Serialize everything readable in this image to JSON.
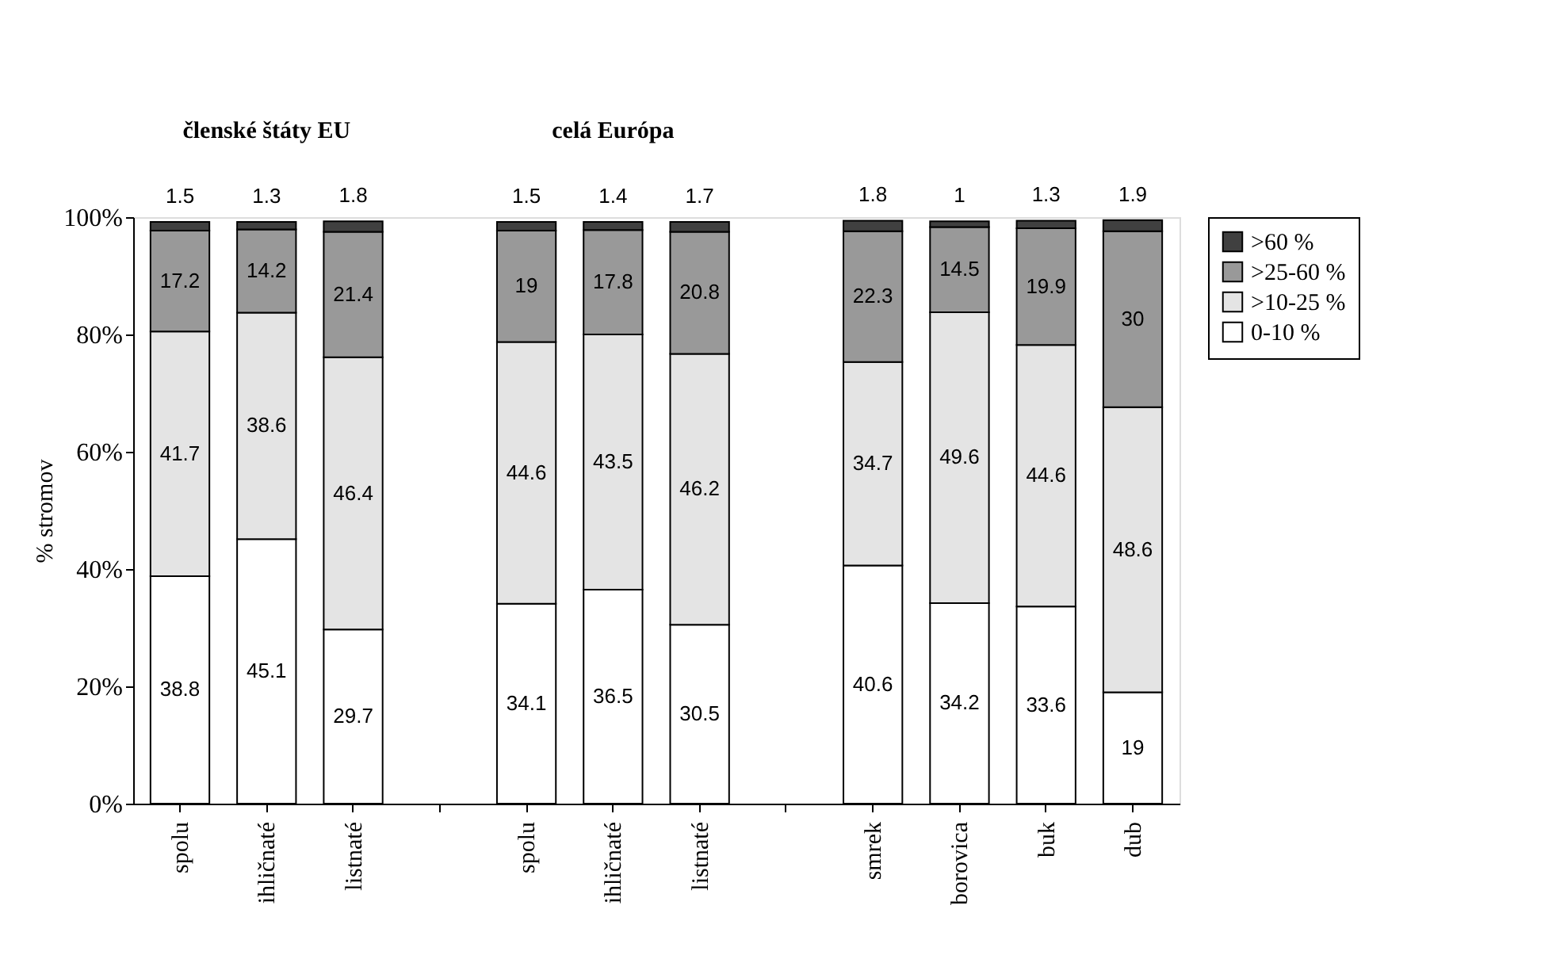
{
  "chart_data": {
    "type": "bar",
    "stacked": true,
    "ylabel": "% stromov",
    "categories": [
      "spolu",
      "ihličnaté",
      "listnaté",
      null,
      "spolu",
      "ihličnaté",
      "listnaté",
      null,
      "smrek",
      "borovica",
      "buk",
      "dub"
    ],
    "series": [
      {
        "name": "0-10 %",
        "color": "#ffffff",
        "values": [
          38.8,
          45.1,
          29.7,
          null,
          34.1,
          36.5,
          30.5,
          null,
          40.6,
          34.2,
          33.6,
          19
        ]
      },
      {
        "name": ">10-25 %",
        "color": "#e4e4e4",
        "values": [
          41.7,
          38.6,
          46.4,
          null,
          44.6,
          43.5,
          46.2,
          null,
          34.7,
          49.6,
          44.6,
          48.6
        ]
      },
      {
        "name": ">25-60 %",
        "color": "#999999",
        "values": [
          17.2,
          14.2,
          21.4,
          null,
          19,
          17.8,
          20.8,
          null,
          22.3,
          14.5,
          19.9,
          30
        ]
      },
      {
        "name": ">60 %",
        "color": "#404040",
        "values": [
          1.5,
          1.3,
          1.8,
          null,
          1.5,
          1.4,
          1.7,
          null,
          1.8,
          1,
          1.3,
          1.9
        ]
      }
    ],
    "ylim": [
      0,
      100
    ],
    "yticks": [
      {
        "value": 0,
        "label": "0%"
      },
      {
        "value": 20,
        "label": "20%"
      },
      {
        "value": 40,
        "label": "40%"
      },
      {
        "value": 60,
        "label": "60%"
      },
      {
        "value": 80,
        "label": "80%"
      },
      {
        "value": 100,
        "label": "100%"
      }
    ],
    "grid": false,
    "legend": "right",
    "data_labels": true,
    "annotations": [
      "členské štáty EU",
      "celá Európa"
    ]
  }
}
